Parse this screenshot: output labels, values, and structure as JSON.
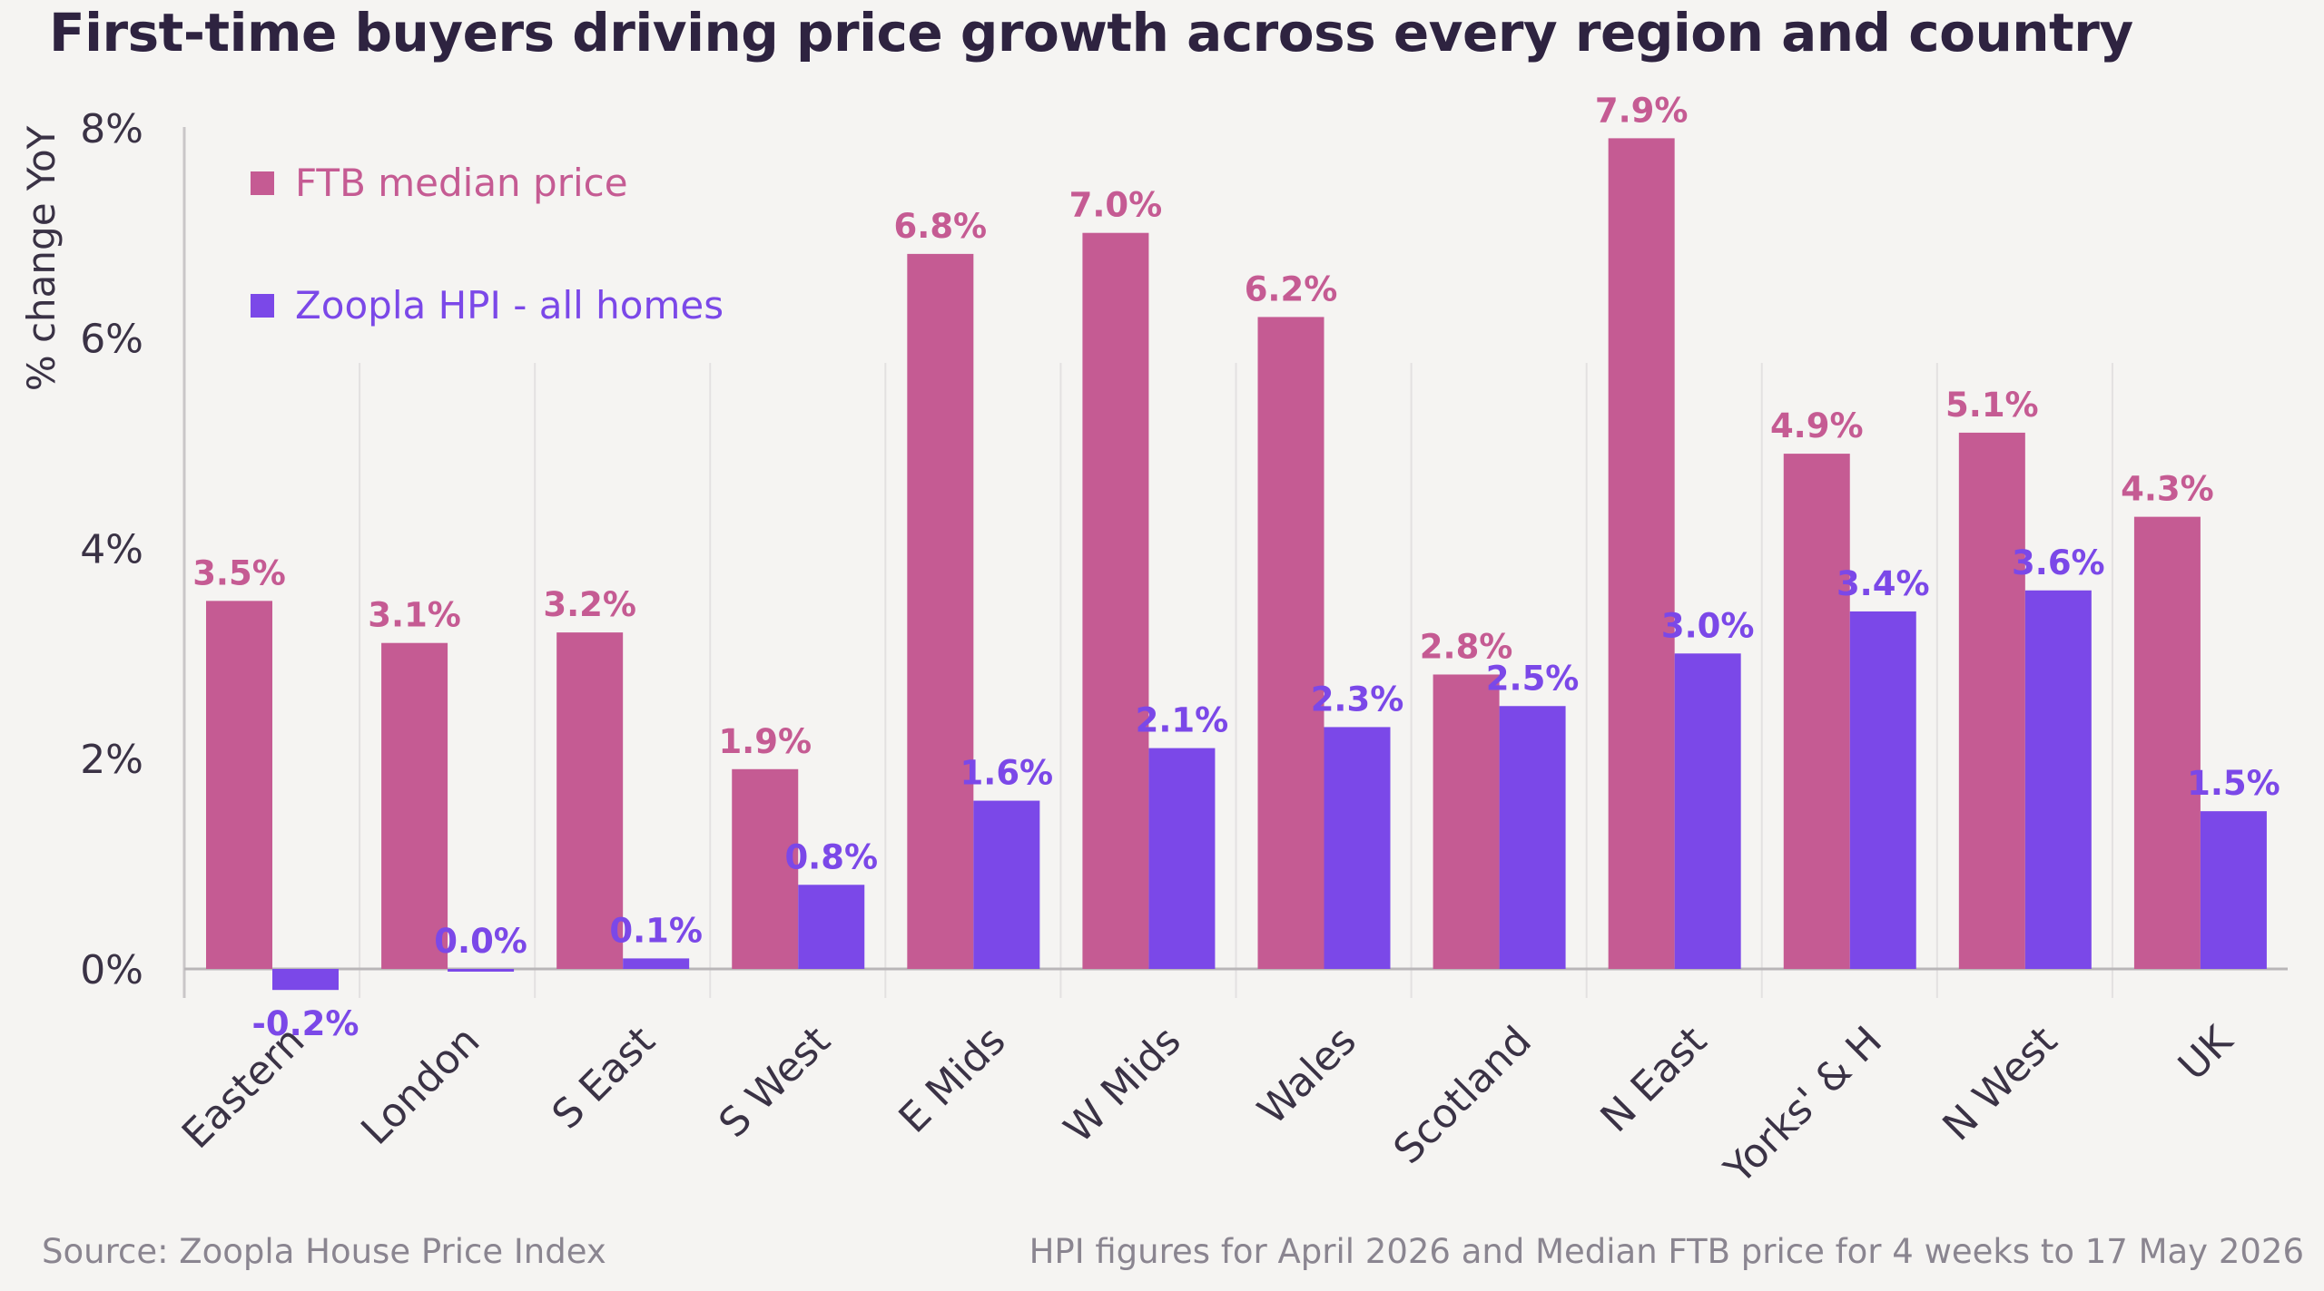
{
  "chart_data": {
    "type": "bar",
    "title": "First-time buyers driving price growth across every region and country",
    "ylabel": "% change YoY",
    "xlabel": "",
    "ylim": [
      0,
      8
    ],
    "yticks": [
      "0%",
      "2%",
      "4%",
      "6%",
      "8%"
    ],
    "ytick_values": [
      0,
      2,
      4,
      6,
      8
    ],
    "grid": "vertical separators between categories",
    "legend_position": "top-left",
    "categories": [
      "Eastern",
      "London",
      "S East",
      "S West",
      "E Mids",
      "W Mids",
      "Wales",
      "Scotland",
      "N East",
      "Yorks' & H",
      "N West",
      "UK"
    ],
    "series": [
      {
        "name": "FTB median price",
        "color": "#c55b93",
        "values": [
          3.5,
          3.1,
          3.2,
          1.9,
          6.8,
          7.0,
          6.2,
          2.8,
          7.9,
          4.9,
          5.1,
          4.3
        ],
        "labels": [
          "3.5%",
          "3.1%",
          "3.2%",
          "1.9%",
          "6.8%",
          "7.0%",
          "6.2%",
          "2.8%",
          "7.9%",
          "4.9%",
          "5.1%",
          "4.3%"
        ]
      },
      {
        "name": "Zoopla HPI - all homes",
        "color": "#7b48e8",
        "values": [
          -0.2,
          0.0,
          0.1,
          0.8,
          1.6,
          2.1,
          2.3,
          2.5,
          3.0,
          3.4,
          3.6,
          1.5
        ],
        "labels": [
          "-0.2%",
          "0.0%",
          "0.1%",
          "0.8%",
          "1.6%",
          "2.1%",
          "2.3%",
          "2.5%",
          "3.0%",
          "3.4%",
          "3.6%",
          "1.5%"
        ]
      }
    ],
    "source": "Source: Zoopla House Price Index",
    "note": "HPI figures for April 2026 and Median FTB price for 4 weeks to 17 May 2026"
  }
}
